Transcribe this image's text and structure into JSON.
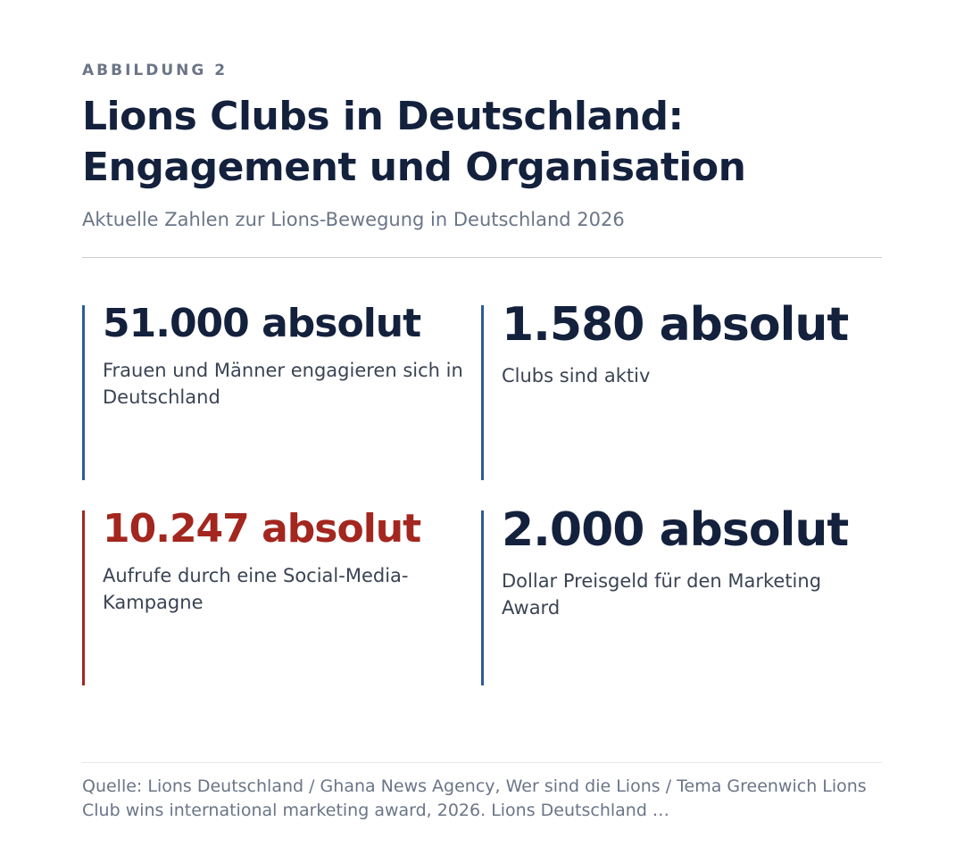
{
  "figure": {
    "label": "ABBILDUNG 2",
    "title_line1": "Lions Clubs in Deutschland:",
    "title_line2": "Engagement und Organisation",
    "subtitle": "Aktuelle Zahlen zur Lions-Bewegung in Deutschland 2026"
  },
  "stats": [
    {
      "value": "51.000 absolut",
      "description": "Frauen und Männer engagieren sich in Deutschland",
      "accent": "#2e5a9c"
    },
    {
      "value": "1.580 absolut",
      "description": "Clubs sind aktiv",
      "accent": "#2e5a9c"
    },
    {
      "value": "10.247 absolut",
      "description": "Aufrufe durch eine Social-Media-Kampagne",
      "accent": "#a3261f"
    },
    {
      "value": "2.000 absolut",
      "description": "Dollar Preisgeld für den Marketing Award",
      "accent": "#2e5a9c"
    }
  ],
  "source": "Quelle: Lions Deutschland / Ghana News Agency, Wer sind die Lions / Tema Greenwich Lions Club wins international marketing award, 2026. Lions Deutschland …",
  "colors": {
    "title": "#14213d",
    "muted": "#6b7587",
    "highlight": "#a3261f",
    "accent": "#2e5a9c"
  }
}
